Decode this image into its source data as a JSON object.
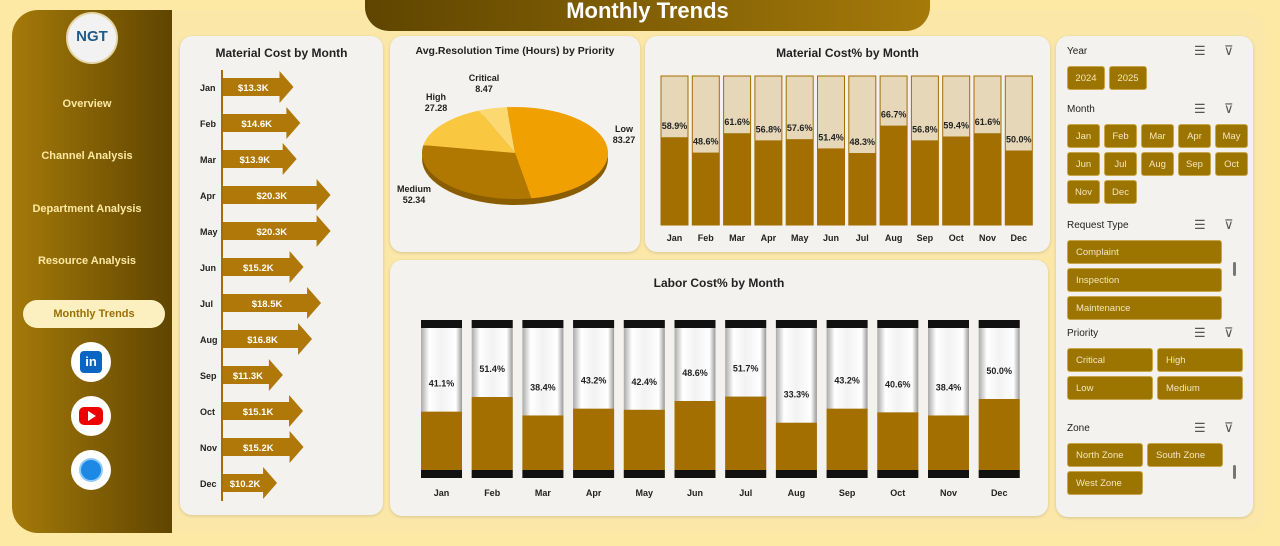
{
  "header": {
    "title": "Monthly Trends"
  },
  "sidebar": {
    "logo": "NGT",
    "items": [
      {
        "label": "Overview"
      },
      {
        "label": "Channel Analysis"
      },
      {
        "label": "Department  Analysis"
      },
      {
        "label": "Resource Analysis"
      },
      {
        "label": "Monthly Trends",
        "active": true
      }
    ],
    "social": [
      "linkedin-icon",
      "youtube-icon",
      "globe-icon"
    ]
  },
  "colors": {
    "accent": "#9c7400",
    "bar": "#a36f00",
    "sidebar_dark": "#5f4500"
  },
  "chart_data": [
    {
      "type": "bar",
      "orientation": "horizontal",
      "title": "Material Cost by Month",
      "categories": [
        "Jan",
        "Feb",
        "Mar",
        "Apr",
        "May",
        "Jun",
        "Jul",
        "Aug",
        "Sep",
        "Oct",
        "Nov",
        "Dec"
      ],
      "values": [
        13.3,
        14.6,
        13.9,
        20.3,
        20.3,
        15.2,
        18.5,
        16.8,
        11.3,
        15.1,
        15.2,
        10.2
      ],
      "labels": [
        "$13.3K",
        "$14.6K",
        "$13.9K",
        "$20.3K",
        "$20.3K",
        "$15.2K",
        "$18.5K",
        "$16.8K",
        "$11.3K",
        "$15.1K",
        "$15.2K",
        "$10.2K"
      ]
    },
    {
      "type": "pie",
      "title": "Avg.Resolution Time (Hours) by Priority",
      "categories": [
        "Low",
        "Medium",
        "High",
        "Critical"
      ],
      "values": [
        83.27,
        52.34,
        27.28,
        8.47
      ],
      "labels": [
        "83.27",
        "52.34",
        "27.28",
        "8.47"
      ],
      "colors": [
        "#f0a000",
        "#b07800",
        "#f9c840",
        "#fbd870"
      ]
    },
    {
      "type": "bar",
      "title": "Material Cost% by Month",
      "categories": [
        "Jan",
        "Feb",
        "Mar",
        "Apr",
        "May",
        "Jun",
        "Jul",
        "Aug",
        "Sep",
        "Oct",
        "Nov",
        "Dec"
      ],
      "values": [
        58.9,
        48.6,
        61.6,
        56.8,
        57.6,
        51.4,
        48.3,
        66.7,
        56.8,
        59.4,
        61.6,
        50.0
      ],
      "labels": [
        "58.9%",
        "48.6%",
        "61.6%",
        "56.8%",
        "57.6%",
        "51.4%",
        "48.3%",
        "66.7%",
        "56.8%",
        "59.4%",
        "61.6%",
        "50.0%"
      ],
      "ylim": [
        0,
        100
      ]
    },
    {
      "type": "bar",
      "title": "Labor Cost% by Month",
      "categories": [
        "Jan",
        "Feb",
        "Mar",
        "Apr",
        "May",
        "Jun",
        "Jul",
        "Aug",
        "Sep",
        "Oct",
        "Nov",
        "Dec"
      ],
      "values": [
        41.1,
        51.4,
        38.4,
        43.2,
        42.4,
        48.6,
        51.7,
        33.3,
        43.2,
        40.6,
        38.4,
        50.0
      ],
      "labels": [
        "41.1%",
        "51.4%",
        "38.4%",
        "43.2%",
        "42.4%",
        "48.6%",
        "51.7%",
        "33.3%",
        "43.2%",
        "40.6%",
        "38.4%",
        "50.0%"
      ],
      "ylim": [
        0,
        100
      ]
    }
  ],
  "filters": [
    {
      "label": "Year",
      "items": [
        "2024",
        "2025"
      ]
    },
    {
      "label": "Month",
      "items": [
        "Jan",
        "Feb",
        "Mar",
        "Apr",
        "May",
        "Jun",
        "Jul",
        "Aug",
        "Sep",
        "Oct",
        "Nov",
        "Dec"
      ]
    },
    {
      "label": "Request Type",
      "items": [
        "Complaint",
        "Inspection",
        "Maintenance"
      ]
    },
    {
      "label": "Priority",
      "items": [
        "Critical",
        "High",
        "Low",
        "Medium"
      ]
    },
    {
      "label": "Zone",
      "items": [
        "North Zone",
        "South Zone",
        "West Zone"
      ]
    }
  ]
}
